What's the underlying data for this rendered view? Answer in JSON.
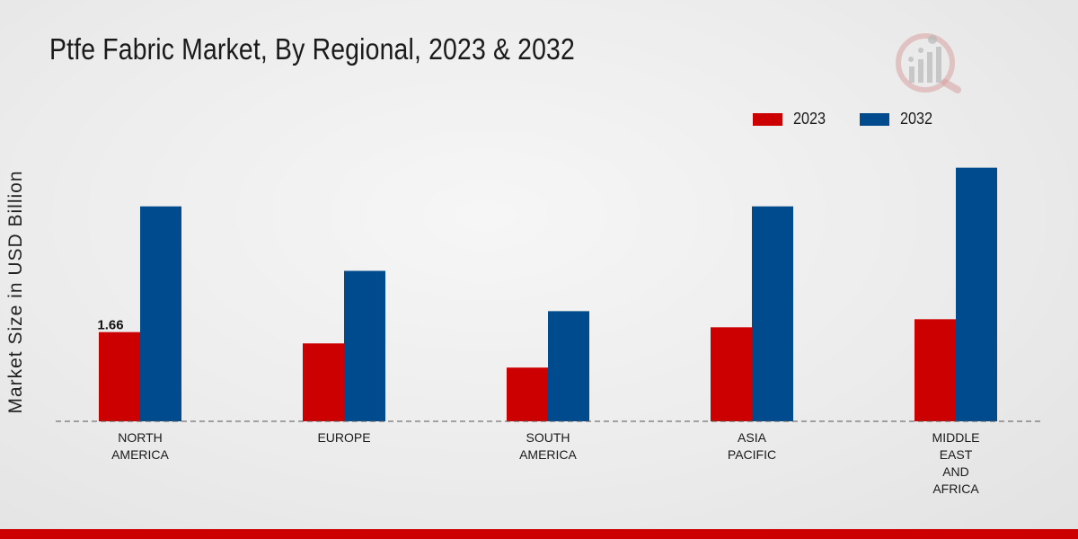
{
  "chart_data": {
    "type": "bar",
    "title": "Ptfe Fabric Market, By Regional, 2023 & 2032",
    "xlabel": "",
    "ylabel": "Market Size in USD Billion",
    "categories": [
      "NORTH\nAMERICA",
      "EUROPE",
      "SOUTH\nAMERICA",
      "ASIA\nPACIFIC",
      "MIDDLE\nEAST\nAND\nAFRICA"
    ],
    "series": [
      {
        "name": "2023",
        "color": "#cc0000",
        "values": [
          1.66,
          1.45,
          1.0,
          1.75,
          1.9
        ]
      },
      {
        "name": "2032",
        "color": "#004b8d",
        "values": [
          4.0,
          2.8,
          2.05,
          4.0,
          4.72
        ]
      }
    ],
    "data_labels": [
      {
        "series": 0,
        "index": 0,
        "text": "1.66"
      }
    ],
    "ylim": [
      0,
      5.5
    ],
    "grid": false,
    "legend_position": "top-right"
  }
}
